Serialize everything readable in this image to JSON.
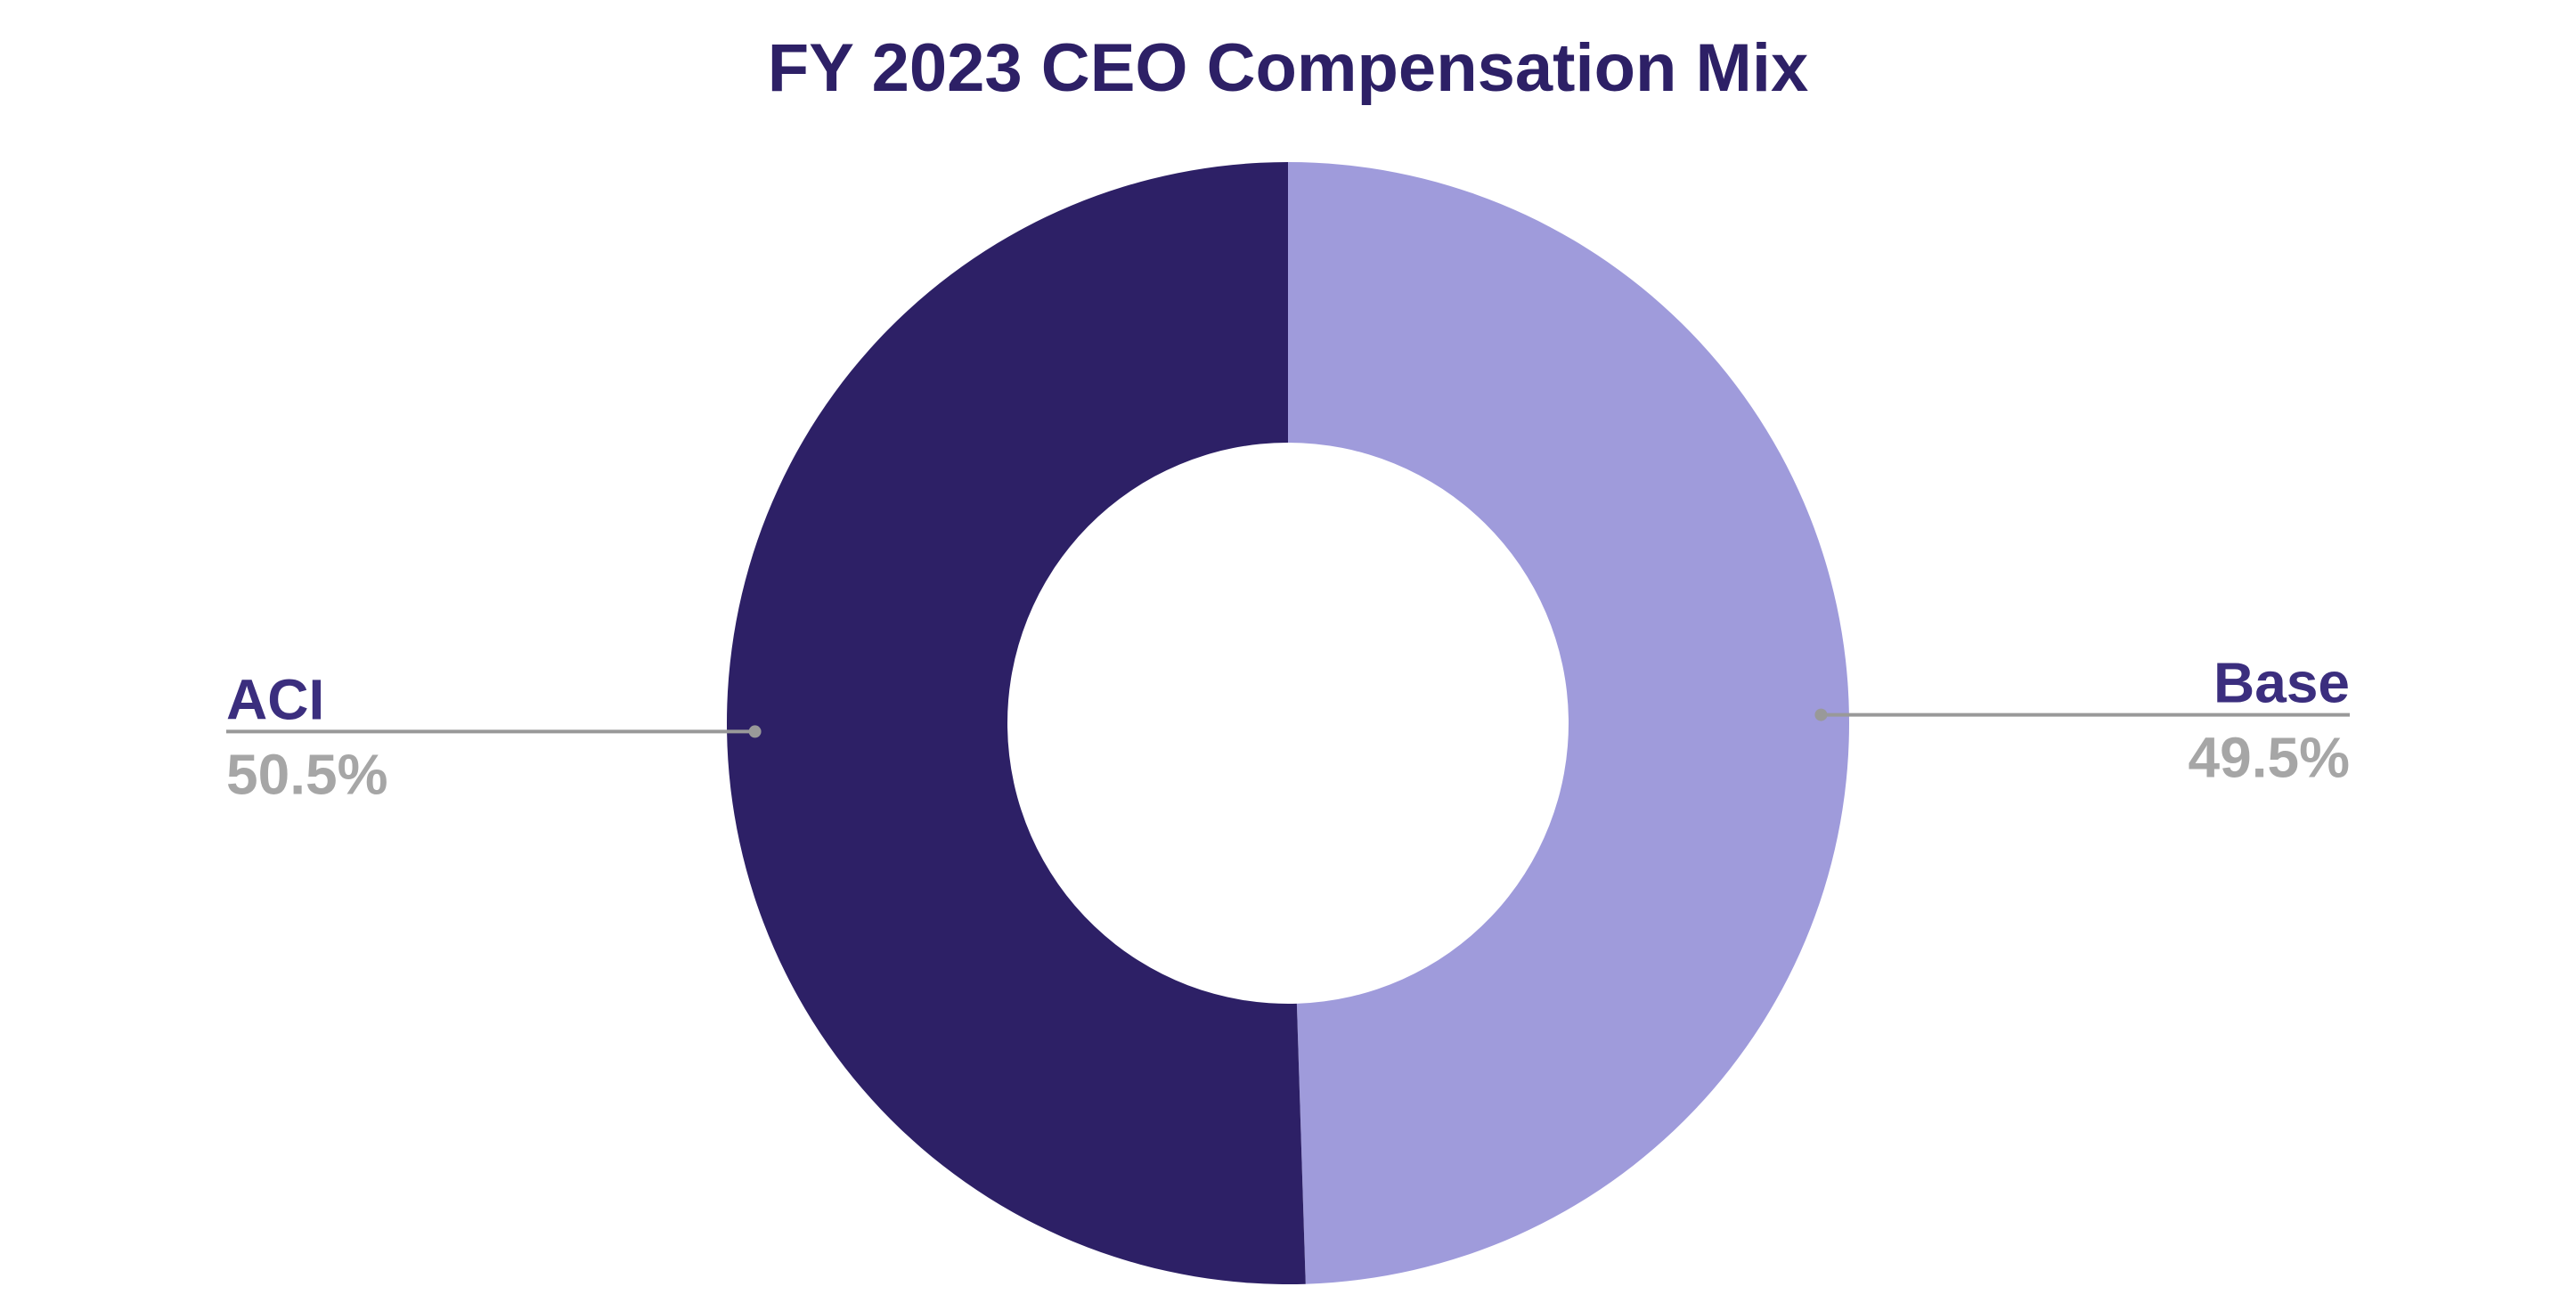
{
  "chart_data": {
    "type": "donut",
    "title": "FY 2023 CEO Compensation Mix",
    "categories": [
      "Base",
      "ACI"
    ],
    "values": [
      49.5,
      50.5
    ],
    "value_labels": [
      "49.5%",
      "50.5%"
    ],
    "colors": [
      "#9f9bdb",
      "#2d2066"
    ]
  }
}
